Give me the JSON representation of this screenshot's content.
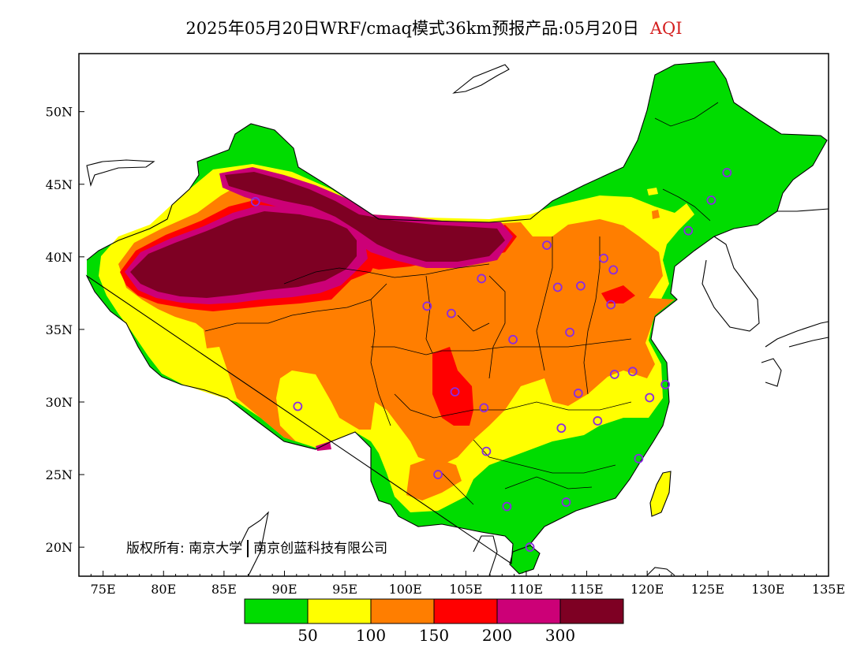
{
  "title": {
    "main": "2025年05月20日WRF/cmaq模式36km预报产品:05月20日",
    "variable": "AQI",
    "variable_color": "#d41e1e"
  },
  "map": {
    "lon_ticks": [
      "75E",
      "80E",
      "85E",
      "90E",
      "95E",
      "100E",
      "105E",
      "110E",
      "115E",
      "120E",
      "125E",
      "130E",
      "135E"
    ],
    "lat_ticks": [
      "50N",
      "45N",
      "40N",
      "35N",
      "30N",
      "25N",
      "20N"
    ],
    "lon_range": [
      73,
      135
    ],
    "lat_range": [
      18,
      54
    ],
    "cities": [
      {
        "lon": 87.6,
        "lat": 43.8
      },
      {
        "lon": 101.8,
        "lat": 36.6
      },
      {
        "lon": 103.8,
        "lat": 36.1
      },
      {
        "lon": 106.3,
        "lat": 38.5
      },
      {
        "lon": 111.7,
        "lat": 40.8
      },
      {
        "lon": 112.6,
        "lat": 37.9
      },
      {
        "lon": 114.5,
        "lat": 38.0
      },
      {
        "lon": 116.4,
        "lat": 39.9
      },
      {
        "lon": 117.2,
        "lat": 39.1
      },
      {
        "lon": 117.0,
        "lat": 36.7
      },
      {
        "lon": 113.6,
        "lat": 34.8
      },
      {
        "lon": 108.9,
        "lat": 34.3
      },
      {
        "lon": 104.1,
        "lat": 30.7
      },
      {
        "lon": 106.5,
        "lat": 29.6
      },
      {
        "lon": 106.7,
        "lat": 26.6
      },
      {
        "lon": 102.7,
        "lat": 25.0
      },
      {
        "lon": 91.1,
        "lat": 29.7
      },
      {
        "lon": 114.3,
        "lat": 30.6
      },
      {
        "lon": 112.9,
        "lat": 28.2
      },
      {
        "lon": 115.9,
        "lat": 28.7
      },
      {
        "lon": 117.3,
        "lat": 31.9
      },
      {
        "lon": 118.8,
        "lat": 32.1
      },
      {
        "lon": 120.2,
        "lat": 30.3
      },
      {
        "lon": 121.5,
        "lat": 31.2
      },
      {
        "lon": 119.3,
        "lat": 26.1
      },
      {
        "lon": 113.3,
        "lat": 23.1
      },
      {
        "lon": 108.4,
        "lat": 22.8
      },
      {
        "lon": 110.3,
        "lat": 20.0
      },
      {
        "lon": 123.4,
        "lat": 41.8
      },
      {
        "lon": 125.3,
        "lat": 43.9
      },
      {
        "lon": 126.6,
        "lat": 45.8
      }
    ]
  },
  "colorbar": {
    "colors": [
      "#00dc00",
      "#ffff00",
      "#ff7e00",
      "#ff0000",
      "#cc0077",
      "#7e0023"
    ],
    "labels": [
      "50",
      "100",
      "150",
      "200",
      "300"
    ]
  },
  "copyright": {
    "left": "版权所有: 南京大学",
    "right": "南京创蓝科技有限公司"
  }
}
